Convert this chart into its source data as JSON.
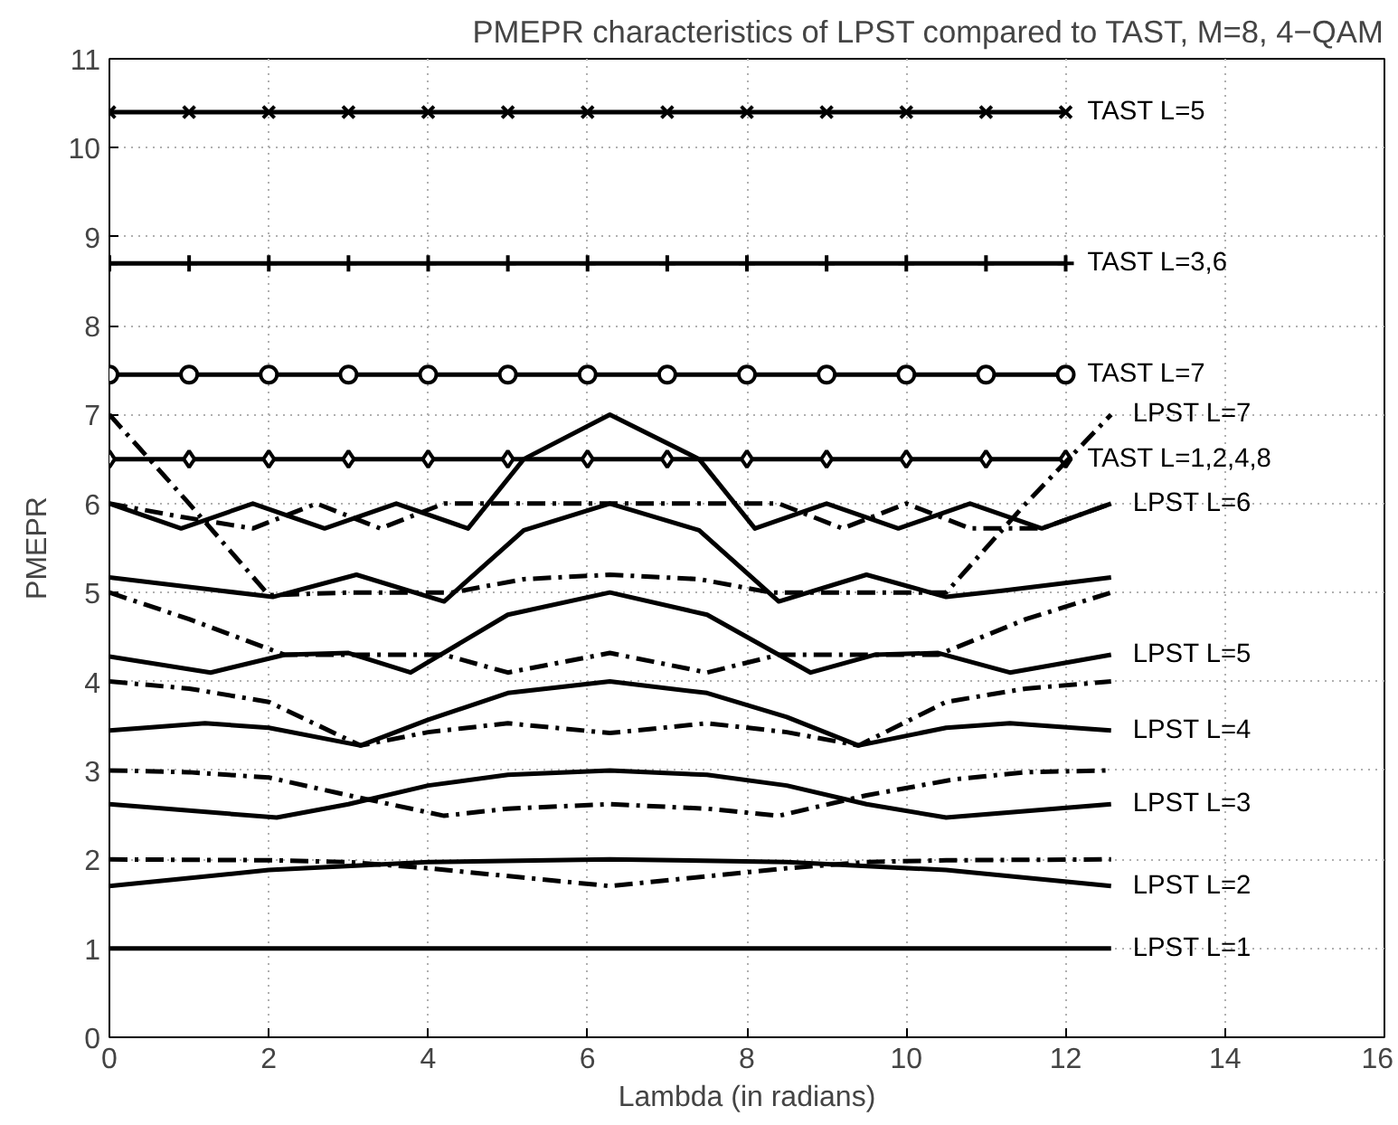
{
  "chart_data": {
    "type": "line",
    "title": "PMEPR characteristics of LPST compared to TAST, M=8, 4−QAM",
    "xlabel": "Lambda (in radians)",
    "ylabel": "PMEPR",
    "xlim": [
      0,
      16
    ],
    "ylim": [
      0,
      11
    ],
    "xticks": [
      0,
      2,
      4,
      6,
      8,
      10,
      12,
      14,
      16
    ],
    "yticks": [
      0,
      1,
      2,
      3,
      4,
      5,
      6,
      7,
      8,
      9,
      10,
      11
    ],
    "grid": true,
    "legend": false,
    "series": [
      {
        "name": "TAST L=5",
        "color": "#000000",
        "line_style": "solid",
        "marker": "x",
        "x": [
          0,
          1,
          2,
          3,
          4,
          5,
          6,
          7,
          8,
          9,
          10,
          11,
          12
        ],
        "values": [
          10.4,
          10.4,
          10.4,
          10.4,
          10.4,
          10.4,
          10.4,
          10.4,
          10.4,
          10.4,
          10.4,
          10.4,
          10.4
        ]
      },
      {
        "name": "TAST L=3,6",
        "color": "#000000",
        "line_style": "solid",
        "marker": "cross",
        "x": [
          0,
          1,
          2,
          3,
          4,
          5,
          6,
          7,
          8,
          9,
          10,
          11,
          12
        ],
        "values": [
          8.7,
          8.7,
          8.7,
          8.7,
          8.7,
          8.7,
          8.7,
          8.7,
          8.7,
          8.7,
          8.7,
          8.7,
          8.7
        ]
      },
      {
        "name": "TAST L=7",
        "color": "#000000",
        "line_style": "solid",
        "marker": "circle",
        "x": [
          0,
          1,
          2,
          3,
          4,
          5,
          6,
          7,
          8,
          9,
          10,
          11,
          12
        ],
        "values": [
          7.45,
          7.45,
          7.45,
          7.45,
          7.45,
          7.45,
          7.45,
          7.45,
          7.45,
          7.45,
          7.45,
          7.45,
          7.45
        ]
      },
      {
        "name": "TAST L=1,2,4,8",
        "color": "#000000",
        "line_style": "solid",
        "marker": "diamond",
        "x": [
          0,
          1,
          2,
          3,
          4,
          5,
          6,
          7,
          8,
          9,
          10,
          11,
          12
        ],
        "values": [
          6.5,
          6.5,
          6.5,
          6.5,
          6.5,
          6.5,
          6.5,
          6.5,
          6.5,
          6.5,
          6.5,
          6.5,
          6.5
        ]
      },
      {
        "name": "LPST L=1",
        "color": "#000000",
        "line_style": "solid",
        "x": [
          0,
          12.57
        ],
        "values": [
          1.0,
          1.0
        ]
      },
      {
        "name": "LPST L=2",
        "color": "#000000",
        "line_style": "solid",
        "x": [
          0,
          2,
          4,
          6.28,
          8.5,
          10.5,
          12.57
        ],
        "values": [
          1.7,
          1.88,
          1.97,
          2.0,
          1.97,
          1.88,
          1.7
        ]
      },
      {
        "color": "#000000",
        "line_style": "dashdot",
        "x": [
          0,
          2,
          3,
          4,
          6.28,
          8.5,
          9.5,
          10.5,
          12.57
        ],
        "values": [
          2.0,
          1.99,
          1.97,
          1.9,
          1.7,
          1.9,
          1.97,
          1.99,
          2.0
        ]
      },
      {
        "name": "LPST L=3",
        "color": "#000000",
        "line_style": "solid",
        "x": [
          0,
          2.1,
          3,
          4,
          5,
          6.28,
          7.5,
          8.5,
          9.5,
          10.5,
          12.57
        ],
        "values": [
          2.62,
          2.47,
          2.62,
          2.83,
          2.95,
          3.0,
          2.95,
          2.83,
          2.62,
          2.47,
          2.62
        ]
      },
      {
        "color": "#000000",
        "line_style": "dashdot",
        "x": [
          0,
          1,
          2,
          3,
          4.2,
          5,
          6.28,
          7.5,
          8.4,
          9.5,
          10.6,
          11.5,
          12.57
        ],
        "values": [
          3.0,
          2.98,
          2.92,
          2.72,
          2.49,
          2.57,
          2.62,
          2.57,
          2.49,
          2.72,
          2.9,
          2.98,
          3.0
        ]
      },
      {
        "name": "LPST L=4",
        "color": "#000000",
        "line_style": "solid",
        "x": [
          0,
          1.2,
          2,
          3.15,
          4,
          5,
          6.28,
          7.5,
          8.5,
          9.4,
          10.5,
          11.3,
          12.57
        ],
        "values": [
          3.45,
          3.53,
          3.48,
          3.28,
          3.57,
          3.87,
          4.0,
          3.87,
          3.6,
          3.28,
          3.48,
          3.53,
          3.45
        ]
      },
      {
        "color": "#000000",
        "line_style": "dashdot",
        "x": [
          0,
          1,
          2,
          3.15,
          4,
          5,
          6.28,
          7.5,
          8.5,
          9.4,
          10.5,
          11.5,
          12.57
        ],
        "values": [
          4.0,
          3.92,
          3.77,
          3.28,
          3.43,
          3.53,
          3.42,
          3.53,
          3.43,
          3.28,
          3.77,
          3.92,
          4.0
        ]
      },
      {
        "name": "LPST L=5",
        "color": "#000000",
        "line_style": "solid",
        "x": [
          0,
          1.27,
          2.2,
          3.0,
          3.78,
          5,
          6.28,
          7.5,
          8.8,
          9.6,
          10.4,
          11.3,
          12.57
        ],
        "values": [
          4.28,
          4.1,
          4.3,
          4.32,
          4.1,
          4.75,
          5.0,
          4.75,
          4.1,
          4.3,
          4.32,
          4.1,
          4.3
        ]
      },
      {
        "color": "#000000",
        "line_style": "dashdot",
        "x": [
          0,
          1,
          2.2,
          4.2,
          5.0,
          6.28,
          7.5,
          8.4,
          10.4,
          11.5,
          12.57
        ],
        "values": [
          5.0,
          4.7,
          4.3,
          4.3,
          4.1,
          4.32,
          4.1,
          4.3,
          4.3,
          4.7,
          5.0
        ]
      },
      {
        "color": "#000000",
        "line_style": "solid",
        "x": [
          0,
          1.4,
          2.05,
          3.1,
          4.2,
          5.2,
          6.28,
          7.4,
          8.4,
          9.5,
          10.5,
          11.2,
          12.57
        ],
        "values": [
          5.17,
          5.02,
          4.95,
          5.2,
          4.9,
          5.7,
          6.0,
          5.7,
          4.9,
          5.2,
          4.95,
          5.02,
          5.17
        ]
      },
      {
        "name": "LPST L=6",
        "color": "#000000",
        "line_style": "dashdot",
        "x": [
          0,
          0.9,
          1.8,
          2.6,
          3.4,
          4.2,
          8.4,
          9.2,
          10.0,
          10.8,
          11.7,
          12.57
        ],
        "values": [
          6.0,
          5.85,
          5.72,
          6.0,
          5.72,
          6.0,
          6.0,
          5.72,
          6.0,
          5.72,
          5.72,
          6.0
        ]
      },
      {
        "color": "#000000",
        "line_style": "solid",
        "x": [
          0,
          0.9,
          1.8,
          2.7,
          3.6,
          4.5,
          5.2,
          6.28,
          7.4,
          8.1,
          9.0,
          9.9,
          10.8,
          11.7,
          12.57
        ],
        "values": [
          6.0,
          5.72,
          6.0,
          5.72,
          6.0,
          5.72,
          6.5,
          7.0,
          6.5,
          5.72,
          6.0,
          5.72,
          6.0,
          5.72,
          6.0
        ]
      },
      {
        "name": "LPST L=7",
        "color": "#000000",
        "line_style": "dashdot",
        "x": [
          0,
          1,
          2,
          3,
          4.3,
          5.2,
          6.28,
          7.4,
          8.3,
          10.5,
          11.5,
          12.57
        ],
        "values": [
          7.0,
          6.0,
          4.97,
          5.0,
          5.0,
          5.15,
          5.2,
          5.15,
          5.0,
          5.0,
          6.0,
          7.0
        ]
      }
    ]
  }
}
